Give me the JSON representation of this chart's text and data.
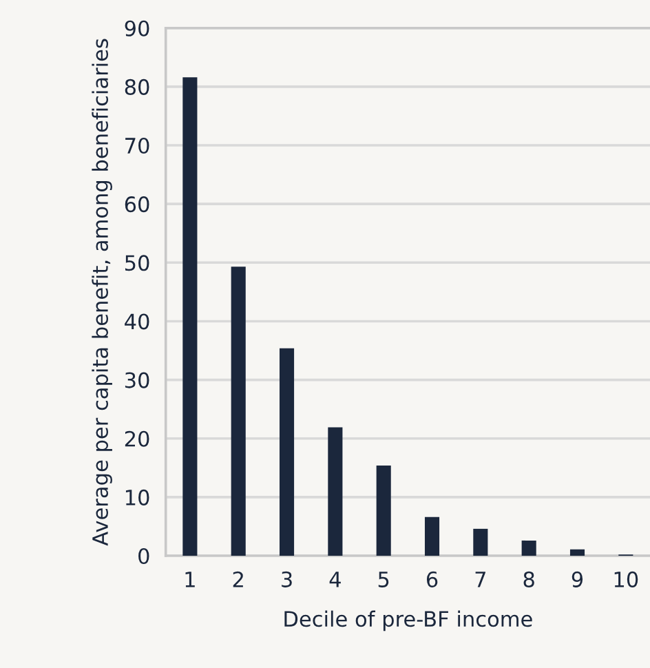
{
  "chart_data": {
    "type": "bar",
    "xlabel": "Decile of pre-BF income",
    "ylabel": "Average per capita benefit, among beneficiaries",
    "categories": [
      "1",
      "2",
      "3",
      "4",
      "5",
      "6",
      "7",
      "8",
      "9",
      "10"
    ],
    "values": [
      81.6,
      49.3,
      35.4,
      21.9,
      15.4,
      6.6,
      4.6,
      2.6,
      1.1,
      0.2
    ],
    "color": "#1b273c",
    "ylim": [
      0,
      90
    ],
    "yticks": [
      0,
      10,
      20,
      30,
      40,
      50,
      60,
      70,
      80,
      90
    ],
    "grid": "y",
    "legend": false
  }
}
